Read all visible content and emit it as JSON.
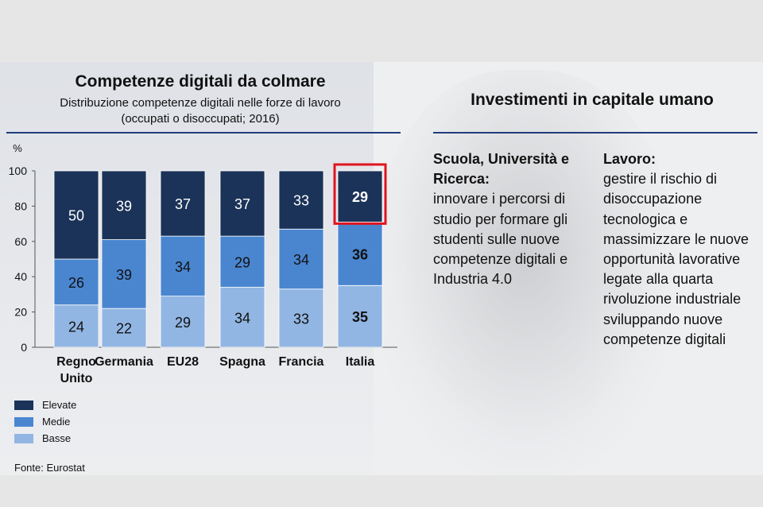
{
  "left_panel": {
    "title": "Competenze digitali da colmare",
    "subtitle_line1": "Distribuzione competenze digitali nelle forze di lavoro",
    "subtitle_line2": "(occupati o disoccupati; 2016)",
    "source": "Fonte: Eurostat"
  },
  "right_panel": {
    "title": "Investimenti in capitale umano",
    "col1": {
      "heading": "Scuola, Università e Ricerca:",
      "body": "innovare i percorsi di studio per formare gli studenti sulle nuove competenze digitali e Industria 4.0"
    },
    "col2": {
      "heading": "Lavoro:",
      "body": "gestire il rischio di disoccupazione tecnologica e massimizzare le nuove opportunità lavorative legate alla quarta rivoluzione industriale sviluppando nuove competenze digitali"
    }
  },
  "colors": {
    "elevate": "#1b3358",
    "medie": "#4a86d0",
    "basse": "#92b6e3",
    "highlight": "#e0141e",
    "rule": "#1f3d7a"
  },
  "chart_data": {
    "type": "bar",
    "stacked": true,
    "unit_label": "%",
    "ylim": [
      0,
      100
    ],
    "yticks": [
      0,
      20,
      40,
      60,
      80,
      100
    ],
    "categories": [
      "Regno Unito",
      "Germania",
      "EU28",
      "Spagna",
      "Francia",
      "Italia"
    ],
    "category_label_lines": [
      [
        "Regno",
        "Unito"
      ],
      [
        "Germania"
      ],
      [
        "EU28"
      ],
      [
        "Spagna"
      ],
      [
        "Francia"
      ],
      [
        "Italia"
      ]
    ],
    "series": [
      {
        "name": "Basse",
        "values": [
          24,
          22,
          29,
          34,
          33,
          35
        ]
      },
      {
        "name": "Medie",
        "values": [
          26,
          39,
          34,
          29,
          34,
          36
        ]
      },
      {
        "name": "Elevate",
        "values": [
          50,
          39,
          37,
          37,
          33,
          29
        ]
      }
    ],
    "legend_order": [
      "Elevate",
      "Medie",
      "Basse"
    ],
    "legend_position": "bottom-left",
    "highlight": {
      "category": "Italia",
      "series": "Elevate"
    },
    "bold_labels_category": "Italia"
  }
}
